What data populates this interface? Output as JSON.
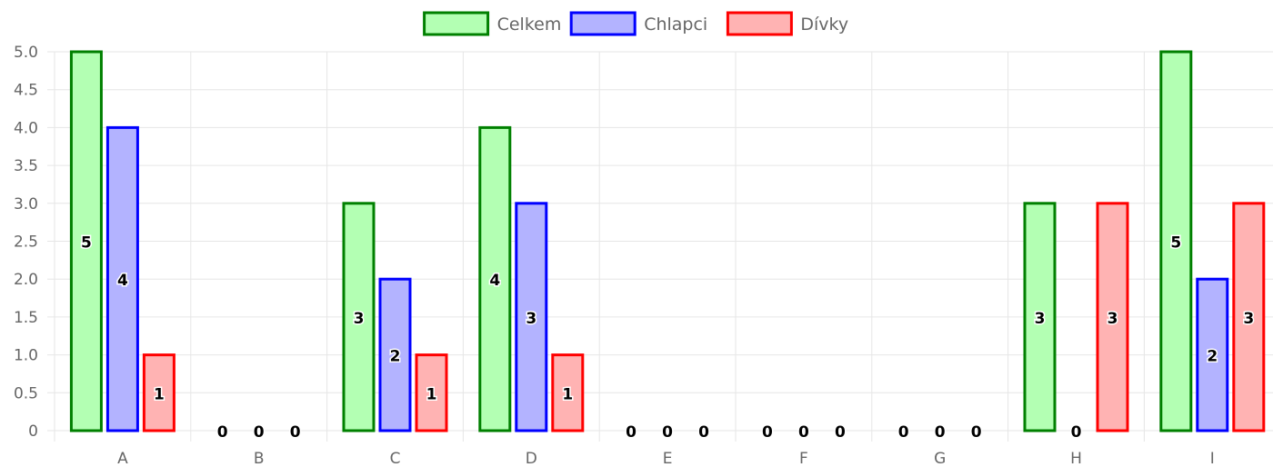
{
  "chart_data": {
    "type": "bar",
    "categories": [
      "A",
      "B",
      "C",
      "D",
      "E",
      "F",
      "G",
      "H",
      "I"
    ],
    "series": [
      {
        "name": "Celkem",
        "values": [
          5,
          0,
          3,
          4,
          0,
          0,
          0,
          3,
          5
        ],
        "fill": "#b3ffb3",
        "stroke": "#008000"
      },
      {
        "name": "Chlapci",
        "values": [
          4,
          0,
          2,
          3,
          0,
          0,
          0,
          0,
          2
        ],
        "fill": "#b3b3ff",
        "stroke": "#0000ff"
      },
      {
        "name": "Dívky",
        "values": [
          1,
          0,
          1,
          1,
          0,
          0,
          0,
          3,
          3
        ],
        "fill": "#ffb3b3",
        "stroke": "#ff0000"
      }
    ],
    "ylim": [
      0,
      5
    ],
    "y_ticks": [
      "0",
      "0.5",
      "1.0",
      "1.5",
      "2.0",
      "2.5",
      "3.0",
      "3.5",
      "4.0",
      "4.5",
      "5.0"
    ],
    "y_step": 0.5,
    "grid": true,
    "legend_position": "top-center",
    "data_labels": true,
    "colors": {
      "grid": "#e6e6e6",
      "tick_text": "#666666",
      "label_text": "#000000"
    }
  }
}
